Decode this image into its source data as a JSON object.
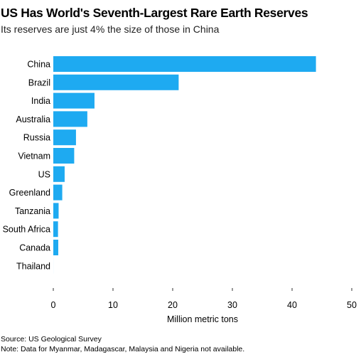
{
  "title": "US Has World's Seventh-Largest Rare Earth Reserves",
  "subtitle": "Its reserves are just 4% the size of those in China",
  "chart_data": {
    "type": "bar",
    "orientation": "horizontal",
    "categories": [
      "China",
      "Brazil",
      "India",
      "Australia",
      "Russia",
      "Vietnam",
      "US",
      "Greenland",
      "Tanzania",
      "South Africa",
      "Canada",
      "Thailand"
    ],
    "values": [
      44,
      21,
      6.9,
      5.7,
      3.8,
      3.5,
      1.9,
      1.5,
      0.89,
      0.79,
      0.83,
      0.004
    ],
    "xlabel": "Million metric tons",
    "xlim": [
      0,
      50
    ],
    "xticks": [
      0,
      10,
      20,
      30,
      40,
      50
    ],
    "bar_color": "#1eaaf1",
    "grid": false
  },
  "source": "Source: US Geological Survey",
  "note": "Note: Data for Myanmar, Madagascar, Malaysia and Nigeria not available."
}
